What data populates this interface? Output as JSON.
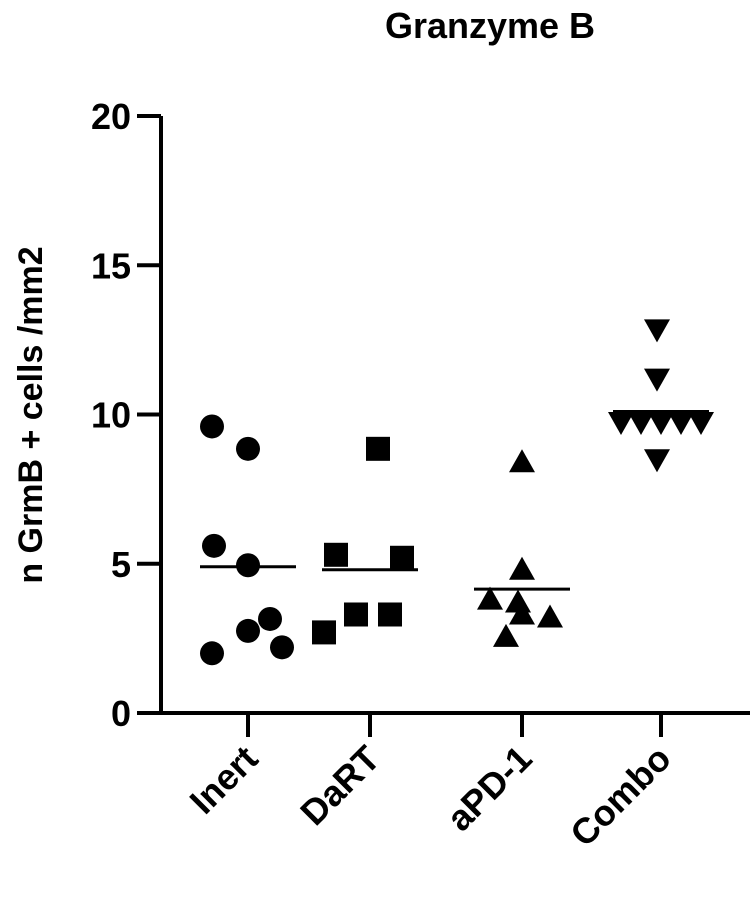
{
  "chart_data": {
    "type": "scatter",
    "title": "Granzyme B",
    "ylabel": "n GrmB + cells /mm2",
    "xlabel": "",
    "categories": [
      "Inert",
      "DaRT",
      "aPD-1",
      "Combo"
    ],
    "ylim": [
      0,
      20
    ],
    "yticks": [
      0,
      5,
      10,
      15,
      20
    ],
    "grid": false,
    "legend": "none",
    "series": [
      {
        "category": "Inert",
        "marker": "circle",
        "mean": 4.9,
        "points": [
          9.6,
          8.85,
          5.6,
          4.95,
          3.15,
          2.75,
          2.2,
          2.0
        ]
      },
      {
        "category": "DaRT",
        "marker": "square",
        "mean": 4.8,
        "points": [
          8.85,
          5.3,
          5.2,
          3.3,
          3.3,
          2.7
        ]
      },
      {
        "category": "aPD-1",
        "marker": "triangle-up",
        "mean": 4.15,
        "points": [
          8.4,
          4.8,
          3.8,
          3.7,
          3.3,
          3.2,
          2.55
        ]
      },
      {
        "category": "Combo",
        "marker": "triangle-down",
        "mean": 10.1,
        "points": [
          12.85,
          11.2,
          9.75,
          9.75,
          9.75,
          9.75,
          9.75,
          8.5
        ]
      }
    ],
    "colors": {
      "marker": "#000000",
      "axis": "#000000"
    }
  }
}
